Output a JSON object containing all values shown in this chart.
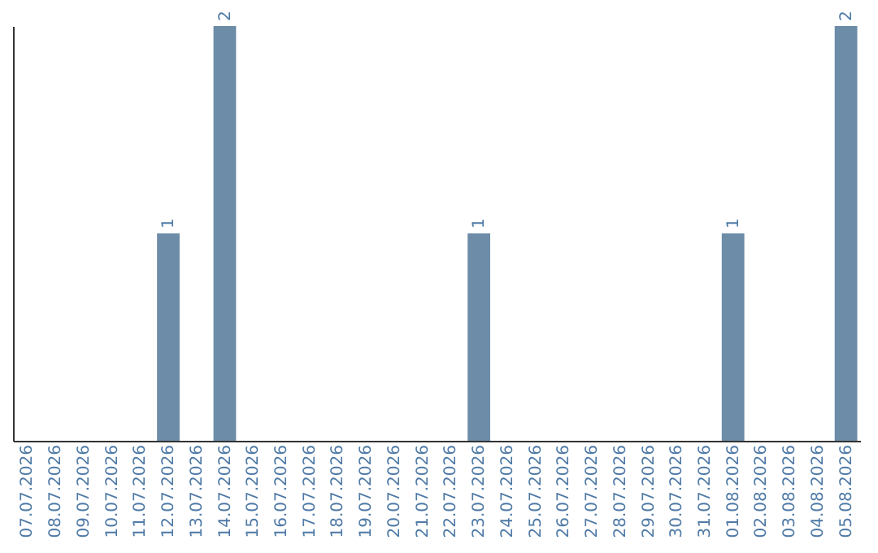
{
  "chart_data": {
    "type": "bar",
    "categories": [
      "07.07.2026",
      "08.07.2026",
      "09.07.2026",
      "10.07.2026",
      "11.07.2026",
      "12.07.2026",
      "13.07.2026",
      "14.07.2026",
      "15.07.2026",
      "16.07.2026",
      "17.07.2026",
      "18.07.2026",
      "19.07.2026",
      "20.07.2026",
      "21.07.2026",
      "22.07.2026",
      "23.07.2026",
      "24.07.2026",
      "25.07.2026",
      "26.07.2026",
      "27.07.2026",
      "28.07.2026",
      "29.07.2026",
      "30.07.2026",
      "31.07.2026",
      "01.08.2026",
      "02.08.2026",
      "03.08.2026",
      "04.08.2026",
      "05.08.2026"
    ],
    "values": [
      0,
      0,
      0,
      0,
      0,
      1,
      0,
      2,
      0,
      0,
      0,
      0,
      0,
      0,
      0,
      0,
      1,
      0,
      0,
      0,
      0,
      0,
      0,
      0,
      0,
      1,
      0,
      0,
      0,
      2
    ],
    "value_labels": [
      null,
      null,
      null,
      null,
      null,
      "1",
      null,
      "2",
      null,
      null,
      null,
      null,
      null,
      null,
      null,
      null,
      "1",
      null,
      null,
      null,
      null,
      null,
      null,
      null,
      null,
      "1",
      null,
      null,
      null,
      "2"
    ],
    "color": "#6d8ca8",
    "ylim": [
      0,
      2
    ],
    "tick_labels": "x",
    "grid": false
  }
}
